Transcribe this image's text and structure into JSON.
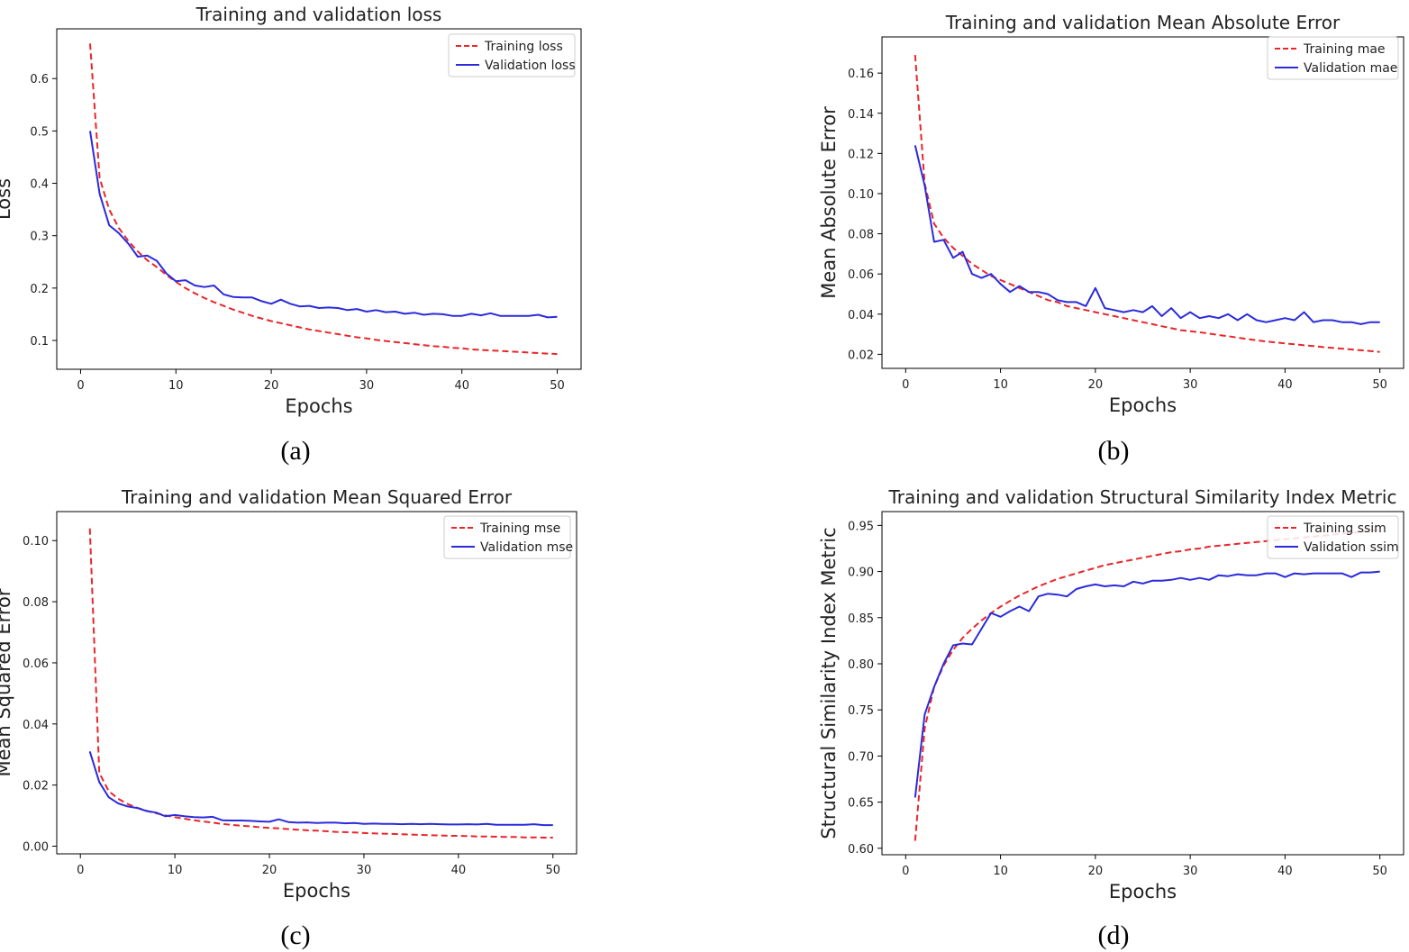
{
  "chart_data": [
    {
      "type": "line",
      "panel": "(a)",
      "title": "Training and validation loss",
      "xlabel": "Epochs",
      "ylabel": "Loss",
      "xlim": [
        -2.5,
        52.5
      ],
      "ylim": [
        0.045,
        0.695
      ],
      "xticks": [
        0,
        10,
        20,
        30,
        40,
        50
      ],
      "yticks": [
        0.1,
        0.2,
        0.3,
        0.4,
        0.5,
        0.6
      ],
      "ytick_format": 1,
      "grid": false,
      "legend_position": "upper right",
      "x_start": 1,
      "series": [
        {
          "name": "Training loss",
          "color": "#e8262a",
          "style": "dashed",
          "values": [
            0.667,
            0.41,
            0.35,
            0.315,
            0.29,
            0.27,
            0.253,
            0.24,
            0.225,
            0.212,
            0.2,
            0.19,
            0.181,
            0.173,
            0.166,
            0.159,
            0.153,
            0.147,
            0.142,
            0.137,
            0.133,
            0.129,
            0.125,
            0.121,
            0.118,
            0.115,
            0.112,
            0.109,
            0.106,
            0.104,
            0.101,
            0.099,
            0.097,
            0.095,
            0.093,
            0.091,
            0.089,
            0.088,
            0.086,
            0.085,
            0.083,
            0.082,
            0.081,
            0.08,
            0.079,
            0.078,
            0.077,
            0.076,
            0.075,
            0.074
          ]
        },
        {
          "name": "Validation loss",
          "color": "#2b2bdc",
          "style": "solid",
          "values": [
            0.5,
            0.38,
            0.32,
            0.305,
            0.285,
            0.26,
            0.262,
            0.252,
            0.228,
            0.213,
            0.215,
            0.205,
            0.202,
            0.205,
            0.188,
            0.183,
            0.182,
            0.182,
            0.175,
            0.17,
            0.178,
            0.17,
            0.165,
            0.166,
            0.162,
            0.163,
            0.162,
            0.158,
            0.16,
            0.155,
            0.158,
            0.154,
            0.155,
            0.151,
            0.153,
            0.149,
            0.151,
            0.15,
            0.147,
            0.147,
            0.151,
            0.148,
            0.152,
            0.147,
            0.147,
            0.147,
            0.147,
            0.149,
            0.144,
            0.145
          ]
        }
      ]
    },
    {
      "type": "line",
      "panel": "(b)",
      "title": "Training and validation Mean Absolute Error",
      "xlabel": "Epochs",
      "ylabel": "Mean Absolute Error",
      "xlim": [
        -2.5,
        52.5
      ],
      "ylim": [
        0.013,
        0.178
      ],
      "xticks": [
        0,
        10,
        20,
        30,
        40,
        50
      ],
      "yticks": [
        0.02,
        0.04,
        0.06,
        0.08,
        0.1,
        0.12,
        0.14,
        0.16
      ],
      "ytick_format": 2,
      "grid": false,
      "legend_position": "upper right",
      "x_start": 1,
      "series": [
        {
          "name": "Training mae",
          "color": "#e8262a",
          "style": "dashed",
          "values": [
            0.169,
            0.105,
            0.085,
            0.078,
            0.073,
            0.069,
            0.065,
            0.062,
            0.059,
            0.057,
            0.055,
            0.053,
            0.051,
            0.049,
            0.047,
            0.046,
            0.044,
            0.043,
            0.042,
            0.041,
            0.04,
            0.039,
            0.038,
            0.037,
            0.036,
            0.035,
            0.034,
            0.033,
            0.032,
            0.0315,
            0.031,
            0.0303,
            0.0296,
            0.029,
            0.0283,
            0.0276,
            0.027,
            0.0264,
            0.0259,
            0.0254,
            0.025,
            0.0245,
            0.0241,
            0.0236,
            0.0232,
            0.0228,
            0.0224,
            0.022,
            0.0216,
            0.0212
          ]
        },
        {
          "name": "Validation mae",
          "color": "#2b2bdc",
          "style": "solid",
          "values": [
            0.124,
            0.104,
            0.076,
            0.077,
            0.068,
            0.071,
            0.06,
            0.058,
            0.06,
            0.055,
            0.051,
            0.054,
            0.051,
            0.051,
            0.05,
            0.047,
            0.046,
            0.046,
            0.044,
            0.053,
            0.043,
            0.042,
            0.041,
            0.042,
            0.041,
            0.044,
            0.039,
            0.043,
            0.038,
            0.041,
            0.038,
            0.039,
            0.038,
            0.04,
            0.037,
            0.04,
            0.037,
            0.036,
            0.037,
            0.038,
            0.037,
            0.041,
            0.036,
            0.037,
            0.037,
            0.036,
            0.036,
            0.035,
            0.036,
            0.036
          ]
        }
      ]
    },
    {
      "type": "line",
      "panel": "(c)",
      "title": "Training and validation Mean Squared Error",
      "xlabel": "Epochs",
      "ylabel": "Mean Squared Error",
      "xlim": [
        -2.5,
        52.5
      ],
      "ylim": [
        -0.0025,
        0.1095
      ],
      "xticks": [
        0,
        10,
        20,
        30,
        40,
        50
      ],
      "yticks": [
        0.0,
        0.02,
        0.04,
        0.06,
        0.08,
        0.1
      ],
      "ytick_format": 2,
      "grid": false,
      "legend_position": "upper right",
      "x_start": 1,
      "series": [
        {
          "name": "Training mse",
          "color": "#e8262a",
          "style": "dashed",
          "values": [
            0.104,
            0.024,
            0.018,
            0.0155,
            0.0138,
            0.0126,
            0.0116,
            0.0108,
            0.0101,
            0.0095,
            0.009,
            0.0085,
            0.0081,
            0.0077,
            0.0073,
            0.007,
            0.0067,
            0.0065,
            0.0062,
            0.006,
            0.0058,
            0.0056,
            0.0054,
            0.0052,
            0.0051,
            0.0049,
            0.0047,
            0.0046,
            0.0045,
            0.0043,
            0.0042,
            0.0041,
            0.004,
            0.0039,
            0.0038,
            0.0037,
            0.0036,
            0.0035,
            0.0034,
            0.0034,
            0.0033,
            0.0032,
            0.0032,
            0.0031,
            0.003,
            0.003,
            0.0029,
            0.0029,
            0.0028,
            0.0028
          ]
        },
        {
          "name": "Validation mse",
          "color": "#2b2bdc",
          "style": "solid",
          "values": [
            0.031,
            0.021,
            0.016,
            0.014,
            0.013,
            0.0125,
            0.0115,
            0.011,
            0.0098,
            0.0102,
            0.0098,
            0.0095,
            0.0094,
            0.0096,
            0.0085,
            0.0084,
            0.0084,
            0.0083,
            0.0081,
            0.008,
            0.0088,
            0.0079,
            0.0077,
            0.0078,
            0.0076,
            0.0077,
            0.0077,
            0.0075,
            0.0076,
            0.0073,
            0.0074,
            0.0073,
            0.0073,
            0.0072,
            0.0073,
            0.0072,
            0.0073,
            0.0072,
            0.0071,
            0.0071,
            0.0072,
            0.0071,
            0.0073,
            0.007,
            0.007,
            0.007,
            0.007,
            0.0072,
            0.0069,
            0.0069
          ]
        }
      ]
    },
    {
      "type": "line",
      "panel": "(d)",
      "title": "Training and validation Structural Similarity Index Metric",
      "xlabel": "Epochs",
      "ylabel": "Structural Similarity Index Metric",
      "xlim": [
        -2.5,
        52.5
      ],
      "ylim": [
        0.593,
        0.965
      ],
      "xticks": [
        0,
        10,
        20,
        30,
        40,
        50
      ],
      "yticks": [
        0.6,
        0.65,
        0.7,
        0.75,
        0.8,
        0.85,
        0.9,
        0.95
      ],
      "ytick_format": 2,
      "grid": false,
      "legend_position": "upper right",
      "x_start": 1,
      "series": [
        {
          "name": "Training ssim",
          "color": "#e8262a",
          "style": "dashed",
          "values": [
            0.608,
            0.73,
            0.775,
            0.798,
            0.815,
            0.828,
            0.838,
            0.847,
            0.855,
            0.862,
            0.868,
            0.874,
            0.879,
            0.884,
            0.888,
            0.892,
            0.895,
            0.898,
            0.901,
            0.904,
            0.907,
            0.909,
            0.911,
            0.913,
            0.915,
            0.917,
            0.919,
            0.921,
            0.922,
            0.924,
            0.925,
            0.927,
            0.928,
            0.929,
            0.93,
            0.931,
            0.932,
            0.933,
            0.934,
            0.935,
            0.936,
            0.937,
            0.938,
            0.939,
            0.94,
            0.941,
            0.942,
            0.943,
            0.944,
            0.945
          ]
        },
        {
          "name": "Validation ssim",
          "color": "#2b2bdc",
          "style": "solid",
          "values": [
            0.655,
            0.745,
            0.775,
            0.8,
            0.82,
            0.822,
            0.821,
            0.838,
            0.855,
            0.851,
            0.857,
            0.862,
            0.857,
            0.873,
            0.876,
            0.875,
            0.873,
            0.881,
            0.884,
            0.886,
            0.884,
            0.885,
            0.884,
            0.889,
            0.887,
            0.89,
            0.89,
            0.891,
            0.893,
            0.891,
            0.893,
            0.891,
            0.896,
            0.895,
            0.897,
            0.896,
            0.896,
            0.898,
            0.898,
            0.894,
            0.898,
            0.897,
            0.898,
            0.898,
            0.898,
            0.898,
            0.894,
            0.899,
            0.899,
            0.9
          ]
        }
      ]
    }
  ]
}
